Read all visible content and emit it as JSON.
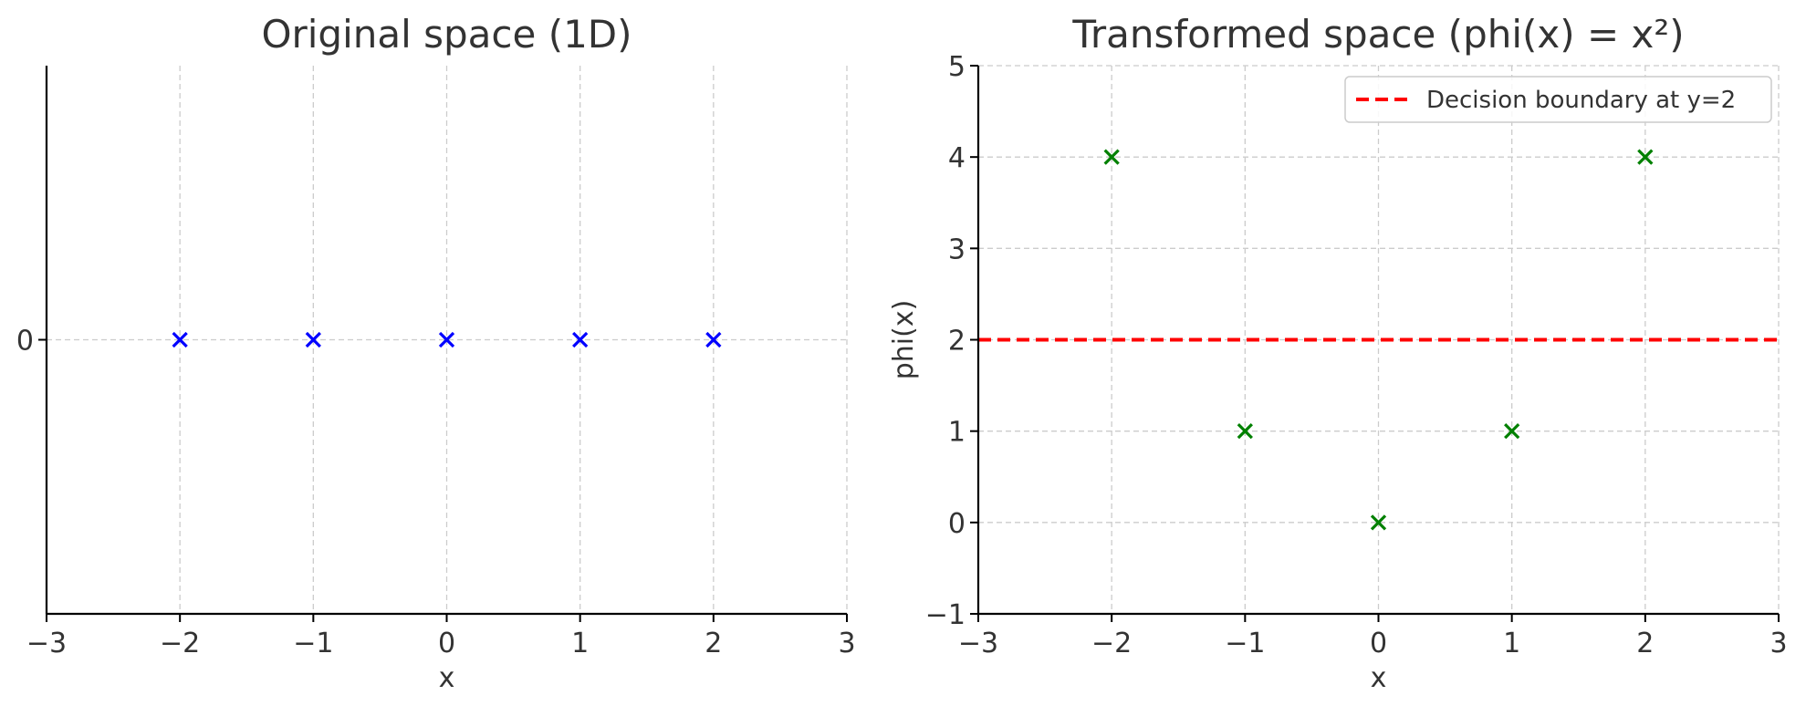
{
  "chart_data": [
    {
      "type": "scatter",
      "title": "Original space (1D)",
      "xlabel": "x",
      "ylabel": "",
      "xlim": [
        -3,
        3
      ],
      "ylim": [
        -1,
        1
      ],
      "xticks": [
        -3,
        -2,
        -1,
        0,
        1,
        2,
        3
      ],
      "yticks": [
        0
      ],
      "grid": true,
      "marker": "x",
      "series": [
        {
          "color": "#0000ff",
          "x": [
            -2,
            -1,
            0,
            1,
            2
          ],
          "y": [
            0,
            0,
            0,
            0,
            0
          ]
        }
      ]
    },
    {
      "type": "scatter",
      "title": "Transformed space (phi(x) = x²)",
      "xlabel": "x",
      "ylabel": "phi(x)",
      "xlim": [
        -3,
        3
      ],
      "ylim": [
        -1,
        5
      ],
      "xticks": [
        -3,
        -2,
        -1,
        0,
        1,
        2,
        3
      ],
      "yticks": [
        -1,
        0,
        1,
        2,
        3,
        4,
        5
      ],
      "grid": true,
      "marker": "x",
      "legend_position": "top-right",
      "series": [
        {
          "color": "#008000",
          "x": [
            -2,
            -1,
            0,
            1,
            2
          ],
          "y": [
            4,
            1,
            0,
            1,
            4
          ]
        }
      ],
      "hlines": [
        {
          "y": 2,
          "color": "#ff0000",
          "style": "dashed",
          "label": "Decision boundary at y=2"
        }
      ]
    }
  ]
}
